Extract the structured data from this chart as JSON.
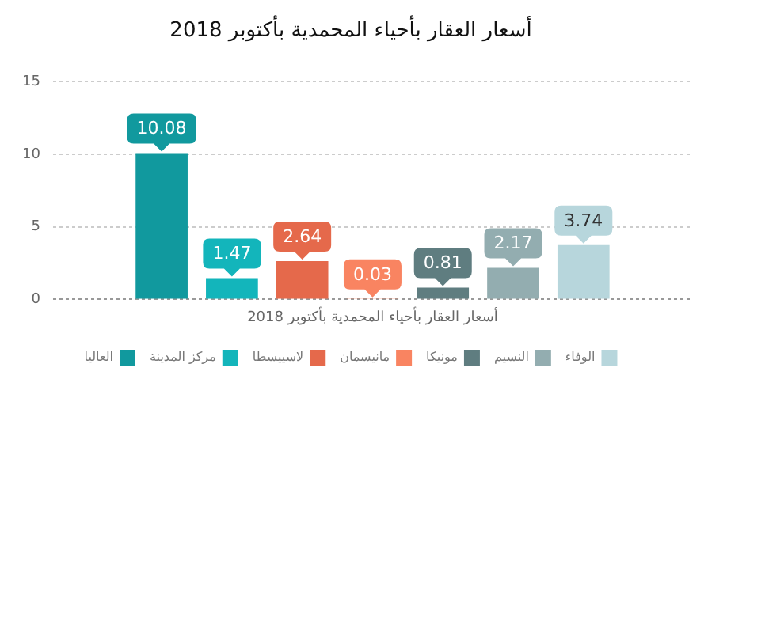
{
  "chart_data": {
    "type": "bar",
    "title": "أسعار العقار بأحياء المحمدية بأكتوبر 2018",
    "categories": [
      "أسعار العقار بأحياء المحمدية بأكتوبر 2018"
    ],
    "series": [
      {
        "name": "العاليا",
        "color": "#11999e",
        "values": [
          10.08
        ]
      },
      {
        "name": "مركز المدينة",
        "color": "#13b5bb",
        "values": [
          1.47
        ]
      },
      {
        "name": "لاسييسطا",
        "color": "#e5694b",
        "values": [
          2.64
        ]
      },
      {
        "name": "مانيسمان",
        "color": "#f98461",
        "values": [
          0.03
        ]
      },
      {
        "name": "مونيكا",
        "color": "#5f7d80",
        "values": [
          0.81
        ]
      },
      {
        "name": "النسيم",
        "color": "#93adb0",
        "values": [
          2.17
        ]
      },
      {
        "name": "الوفاء",
        "color": "#b7d6dc",
        "values": [
          3.74
        ]
      }
    ],
    "ylim": [
      0,
      15
    ],
    "yticks": [
      0,
      5,
      10,
      15
    ],
    "grid": "y",
    "legend": "bottom",
    "data_labels": true
  }
}
